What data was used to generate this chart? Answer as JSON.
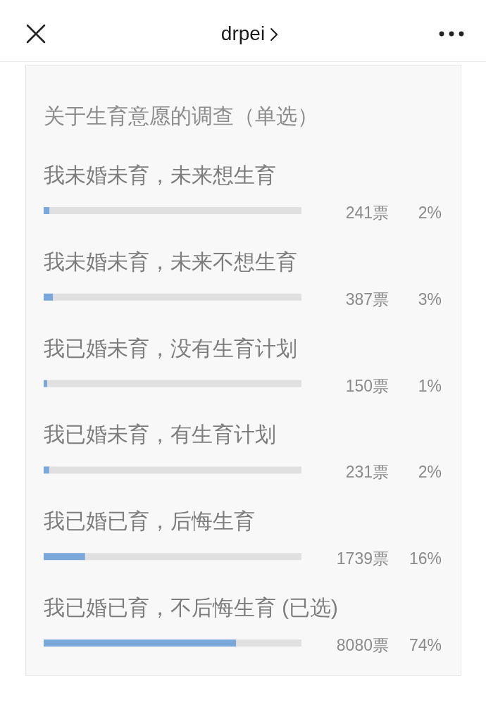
{
  "chart_data": {
    "type": "bar",
    "orientation": "horizontal",
    "title": "关于生育意愿的调查（单选）",
    "categories": [
      "我未婚未育，未来想生育",
      "我未婚未育，未来不想生育",
      "我已婚未育，没有生育计划",
      "我已婚未育，有生育计划",
      "我已婚已育，后悔生育",
      "我已婚已育，不后悔生育 (已选)"
    ],
    "values": [
      241,
      387,
      150,
      231,
      1739,
      8080
    ],
    "value_labels": [
      "241票",
      "387票",
      "150票",
      "231票",
      "1739票",
      "8080票"
    ],
    "color": "#7aa8da",
    "xlim": [
      0,
      10828
    ],
    "tick_labels": "y",
    "annotations": [
      "drpei",
      "2%",
      "3%",
      "1%",
      "2%",
      "16%",
      "74%"
    ]
  }
}
